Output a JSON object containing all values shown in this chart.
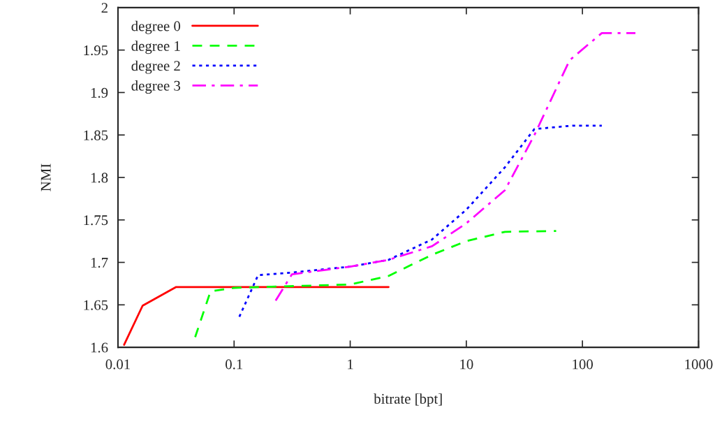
{
  "chart_data": {
    "type": "line",
    "xlabel": "bitrate [bpt]",
    "ylabel": "NMI",
    "log": "x",
    "xlim": [
      0.01,
      1000
    ],
    "xticks": [
      0.01,
      0.1,
      1,
      10,
      100,
      1000
    ],
    "ylim": [
      1.6,
      2
    ],
    "yticks": [
      1.6,
      1.65,
      1.7,
      1.75,
      1.8,
      1.85,
      1.9,
      1.95,
      2
    ],
    "grid": false,
    "legend": "top left",
    "marker": "none",
    "series": [
      {
        "name": "degree 0",
        "color": "#ff0000",
        "line_style": "solid",
        "x": [
          0.0113,
          0.0163,
          0.0317,
          2.14
        ],
        "values": [
          1.603,
          1.649,
          1.671,
          1.671
        ]
      },
      {
        "name": "degree 1",
        "color": "#00ff00",
        "line_style": "dashed",
        "x": [
          0.0462,
          0.0627,
          0.1,
          1,
          2.14,
          5.07,
          10,
          21.5,
          59.4
        ],
        "values": [
          1.612,
          1.666,
          1.67,
          1.674,
          1.684,
          1.709,
          1.725,
          1.736,
          1.737
        ]
      },
      {
        "name": "degree 2",
        "color": "#0000ff",
        "line_style": "dotted",
        "x": [
          0.111,
          0.161,
          0.315,
          1,
          2.14,
          5.07,
          10,
          21.5,
          38.6,
          81.9,
          146.8
        ],
        "values": [
          1.636,
          1.685,
          1.688,
          1.695,
          1.703,
          1.727,
          1.762,
          1.812,
          1.857,
          1.861,
          1.861
        ]
      },
      {
        "name": "degree 3",
        "color": "#ff00ff",
        "line_style": "dashdot",
        "x": [
          0.228,
          0.315,
          1,
          2.14,
          5.07,
          10,
          21.5,
          38.6,
          77.5,
          146.8,
          286
        ],
        "values": [
          1.655,
          1.686,
          1.695,
          1.703,
          1.719,
          1.746,
          1.785,
          1.85,
          1.938,
          1.97,
          1.97
        ]
      }
    ]
  }
}
